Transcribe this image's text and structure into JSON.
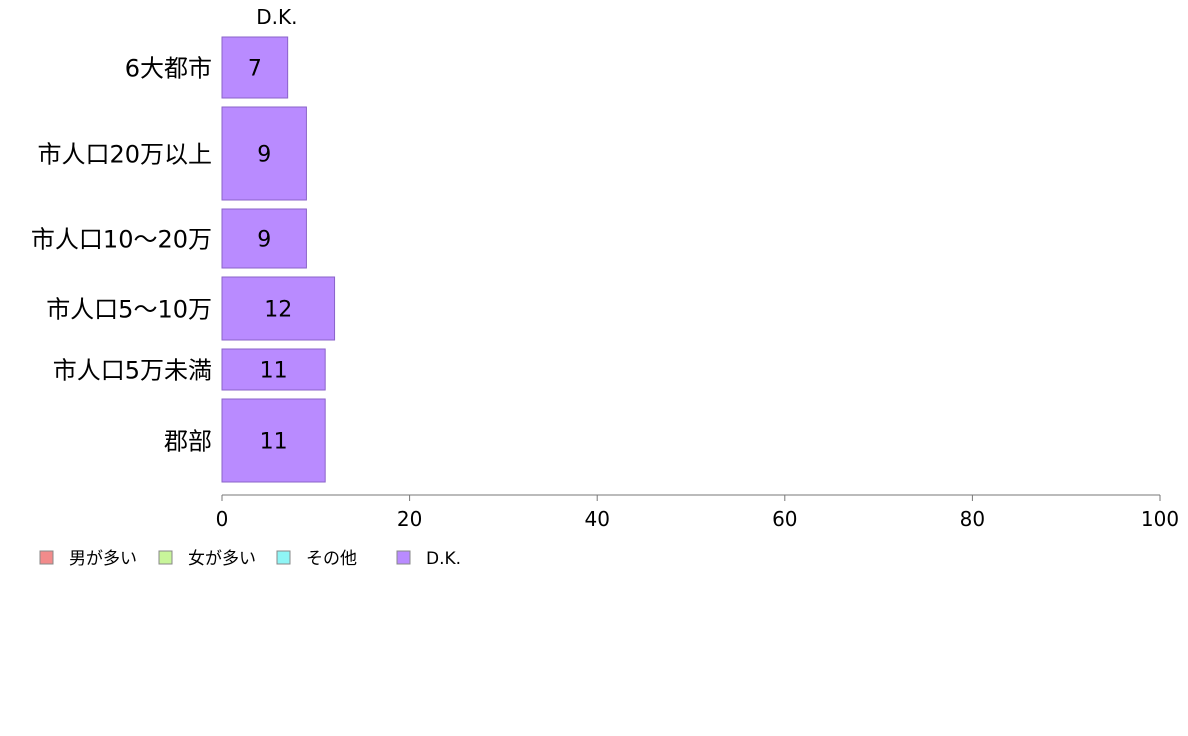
{
  "chart_data": {
    "type": "bar",
    "orientation": "horizontal",
    "stacked": true,
    "categories": [
      "6大都市",
      "市人口20万以上",
      "市人口10〜20万",
      "市人口5〜10万",
      "市人口5万未満",
      "郡部"
    ],
    "series": [
      {
        "name": "男が多い",
        "color": "#f28b8b",
        "values": [
          0,
          0,
          0,
          0,
          0,
          0
        ]
      },
      {
        "name": "女が多い",
        "color": "#c8f59a",
        "values": [
          0,
          0,
          0,
          0,
          0,
          0
        ]
      },
      {
        "name": "その他",
        "color": "#8ff5f5",
        "values": [
          0,
          0,
          0,
          0,
          0,
          0
        ]
      },
      {
        "name": "D.K.",
        "color": "#b98bff",
        "values": [
          7,
          9,
          9,
          12,
          11,
          11
        ]
      }
    ],
    "data_labels": [
      "7",
      "9",
      "9",
      "12",
      "11",
      "11"
    ],
    "segment_header": "D.K.",
    "xlim": [
      0,
      100
    ],
    "x_ticks": [
      0,
      20,
      40,
      60,
      80,
      100
    ],
    "grid": false,
    "legend_position": "bottom-left"
  }
}
